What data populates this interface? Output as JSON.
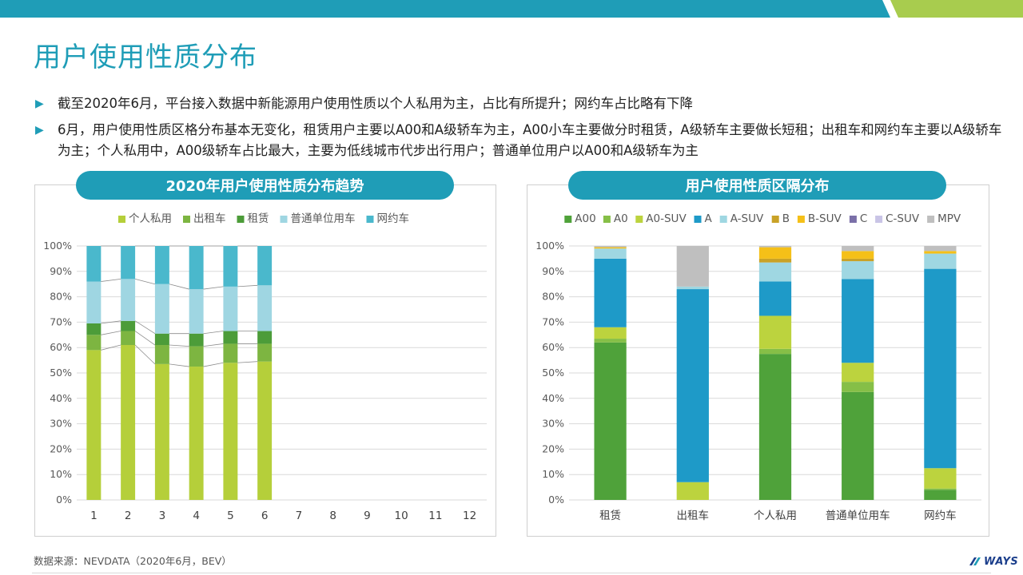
{
  "page": {
    "title": "用户使用性质分布",
    "bullets": [
      "截至2020年6月，平台接入数据中新能源用户使用性质以个人私用为主，占比有所提升；网约车占比略有下降",
      "6月，用户使用性质区格分布基本无变化，租赁用户主要以A00和A级轿车为主，A00小车主要做分时租赁，A级轿车主要做长短租；出租车和网约车主要以A级轿车为主；个人私用中，A00级轿车占比最大，主要为低线城市代步出行用户；普通单位用户以A00和A级轿车为主"
    ],
    "source": "数据来源：NEVDATA（2020年6月，BEV）",
    "logo_text": "WAYS",
    "colors": {
      "accent": "#1f9db7",
      "band_green": "#a8cc4e"
    }
  },
  "chart_data": [
    {
      "type": "bar",
      "stacked": true,
      "title": "2020年用户使用性质分布趋势",
      "legend_position": "top",
      "categories": [
        "1",
        "2",
        "3",
        "4",
        "5",
        "6",
        "7",
        "8",
        "9",
        "10",
        "11",
        "12"
      ],
      "y_ticks": [
        "0%",
        "10%",
        "20%",
        "30%",
        "40%",
        "50%",
        "60%",
        "70%",
        "80%",
        "90%",
        "100%"
      ],
      "ylim": [
        0,
        100
      ],
      "grid": true,
      "series": [
        {
          "name": "个人私用",
          "color": "#b5cf3a",
          "values": [
            59,
            61,
            53.5,
            52.5,
            54,
            54.5,
            null,
            null,
            null,
            null,
            null,
            null
          ]
        },
        {
          "name": "出租车",
          "color": "#7db541",
          "values": [
            6,
            5.5,
            7.5,
            8,
            7.5,
            7,
            null,
            null,
            null,
            null,
            null,
            null
          ]
        },
        {
          "name": "租赁",
          "color": "#4c9c39",
          "values": [
            4.5,
            4,
            4.5,
            5,
            5,
            5,
            null,
            null,
            null,
            null,
            null,
            null
          ]
        },
        {
          "name": "普通单位用车",
          "color": "#9fd6e2",
          "values": [
            16.5,
            16.5,
            19.5,
            17.5,
            17.5,
            18,
            null,
            null,
            null,
            null,
            null,
            null
          ]
        },
        {
          "name": "网约车",
          "color": "#4ab8cc",
          "values": [
            14,
            13,
            15,
            17,
            16,
            15.5,
            null,
            null,
            null,
            null,
            null,
            null
          ]
        }
      ]
    },
    {
      "type": "bar",
      "stacked": true,
      "title": "用户使用性质区隔分布",
      "legend_position": "top",
      "categories": [
        "租赁",
        "出租车",
        "个人私用",
        "普通单位用车",
        "网约车"
      ],
      "y_ticks": [
        "0%",
        "10%",
        "20%",
        "30%",
        "40%",
        "50%",
        "60%",
        "70%",
        "80%",
        "90%",
        "100%"
      ],
      "ylim": [
        0,
        100
      ],
      "grid": true,
      "series": [
        {
          "name": "A00",
          "color": "#4fa23a",
          "values": [
            62,
            0,
            57.5,
            42.5,
            4
          ]
        },
        {
          "name": "A0",
          "color": "#86bf47",
          "values": [
            1.5,
            0,
            2,
            4,
            0.5
          ]
        },
        {
          "name": "A0-SUV",
          "color": "#bcd33e",
          "values": [
            4.5,
            7,
            13,
            7.5,
            8
          ]
        },
        {
          "name": "A",
          "color": "#1e9ac8",
          "values": [
            27,
            76,
            13.5,
            33,
            78.5
          ]
        },
        {
          "name": "A-SUV",
          "color": "#9fd7e2",
          "values": [
            4,
            1,
            7.5,
            7,
            6
          ]
        },
        {
          "name": "B",
          "color": "#c9a227",
          "values": [
            0,
            0,
            1.5,
            1,
            0
          ]
        },
        {
          "name": "B-SUV",
          "color": "#f5c018",
          "values": [
            0.5,
            0,
            4.5,
            3,
            1
          ]
        },
        {
          "name": "C",
          "color": "#7a6fa8",
          "values": [
            0,
            0,
            0,
            0,
            0
          ]
        },
        {
          "name": "C-SUV",
          "color": "#c9c4e6",
          "values": [
            0,
            0,
            0,
            0,
            0
          ]
        },
        {
          "name": "MPV",
          "color": "#bfbfbf",
          "values": [
            0.5,
            16,
            0.5,
            2,
            2
          ]
        }
      ]
    }
  ]
}
